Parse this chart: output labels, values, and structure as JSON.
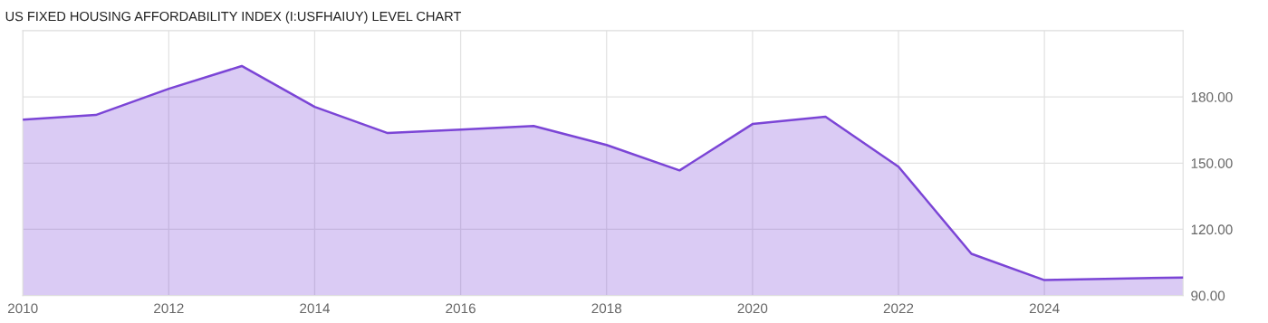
{
  "chart_data": {
    "type": "area",
    "title": "US FIXED HOUSING AFFORDABILITY INDEX (I:USFHAIUY) LEVEL CHART",
    "x": [
      2010,
      2011,
      2012,
      2013,
      2014,
      2015,
      2016,
      2017,
      2018,
      2019,
      2020,
      2021,
      2022,
      2023,
      2024,
      2025.9
    ],
    "series": [
      {
        "color": "#7b45d6",
        "values": [
          169.7,
          171.8,
          183.7,
          194.0,
          175.5,
          163.6,
          165.2,
          166.8,
          158.2,
          146.7,
          167.7,
          171.0,
          148.4,
          108.9,
          97.0,
          98.2
        ]
      }
    ],
    "xlim": [
      2010,
      2025.9
    ],
    "xticks": [
      2010,
      2012,
      2014,
      2016,
      2018,
      2020,
      2022,
      2024
    ],
    "ylim": [
      90,
      210
    ],
    "yticks": [
      {
        "value": 90,
        "label": "90.00"
      },
      {
        "value": 120,
        "label": "120.00"
      },
      {
        "value": 150,
        "label": "150.00"
      },
      {
        "value": 180,
        "label": "180.00"
      }
    ],
    "grid": true,
    "legend": false,
    "marker": "none",
    "line_style": "solid"
  }
}
